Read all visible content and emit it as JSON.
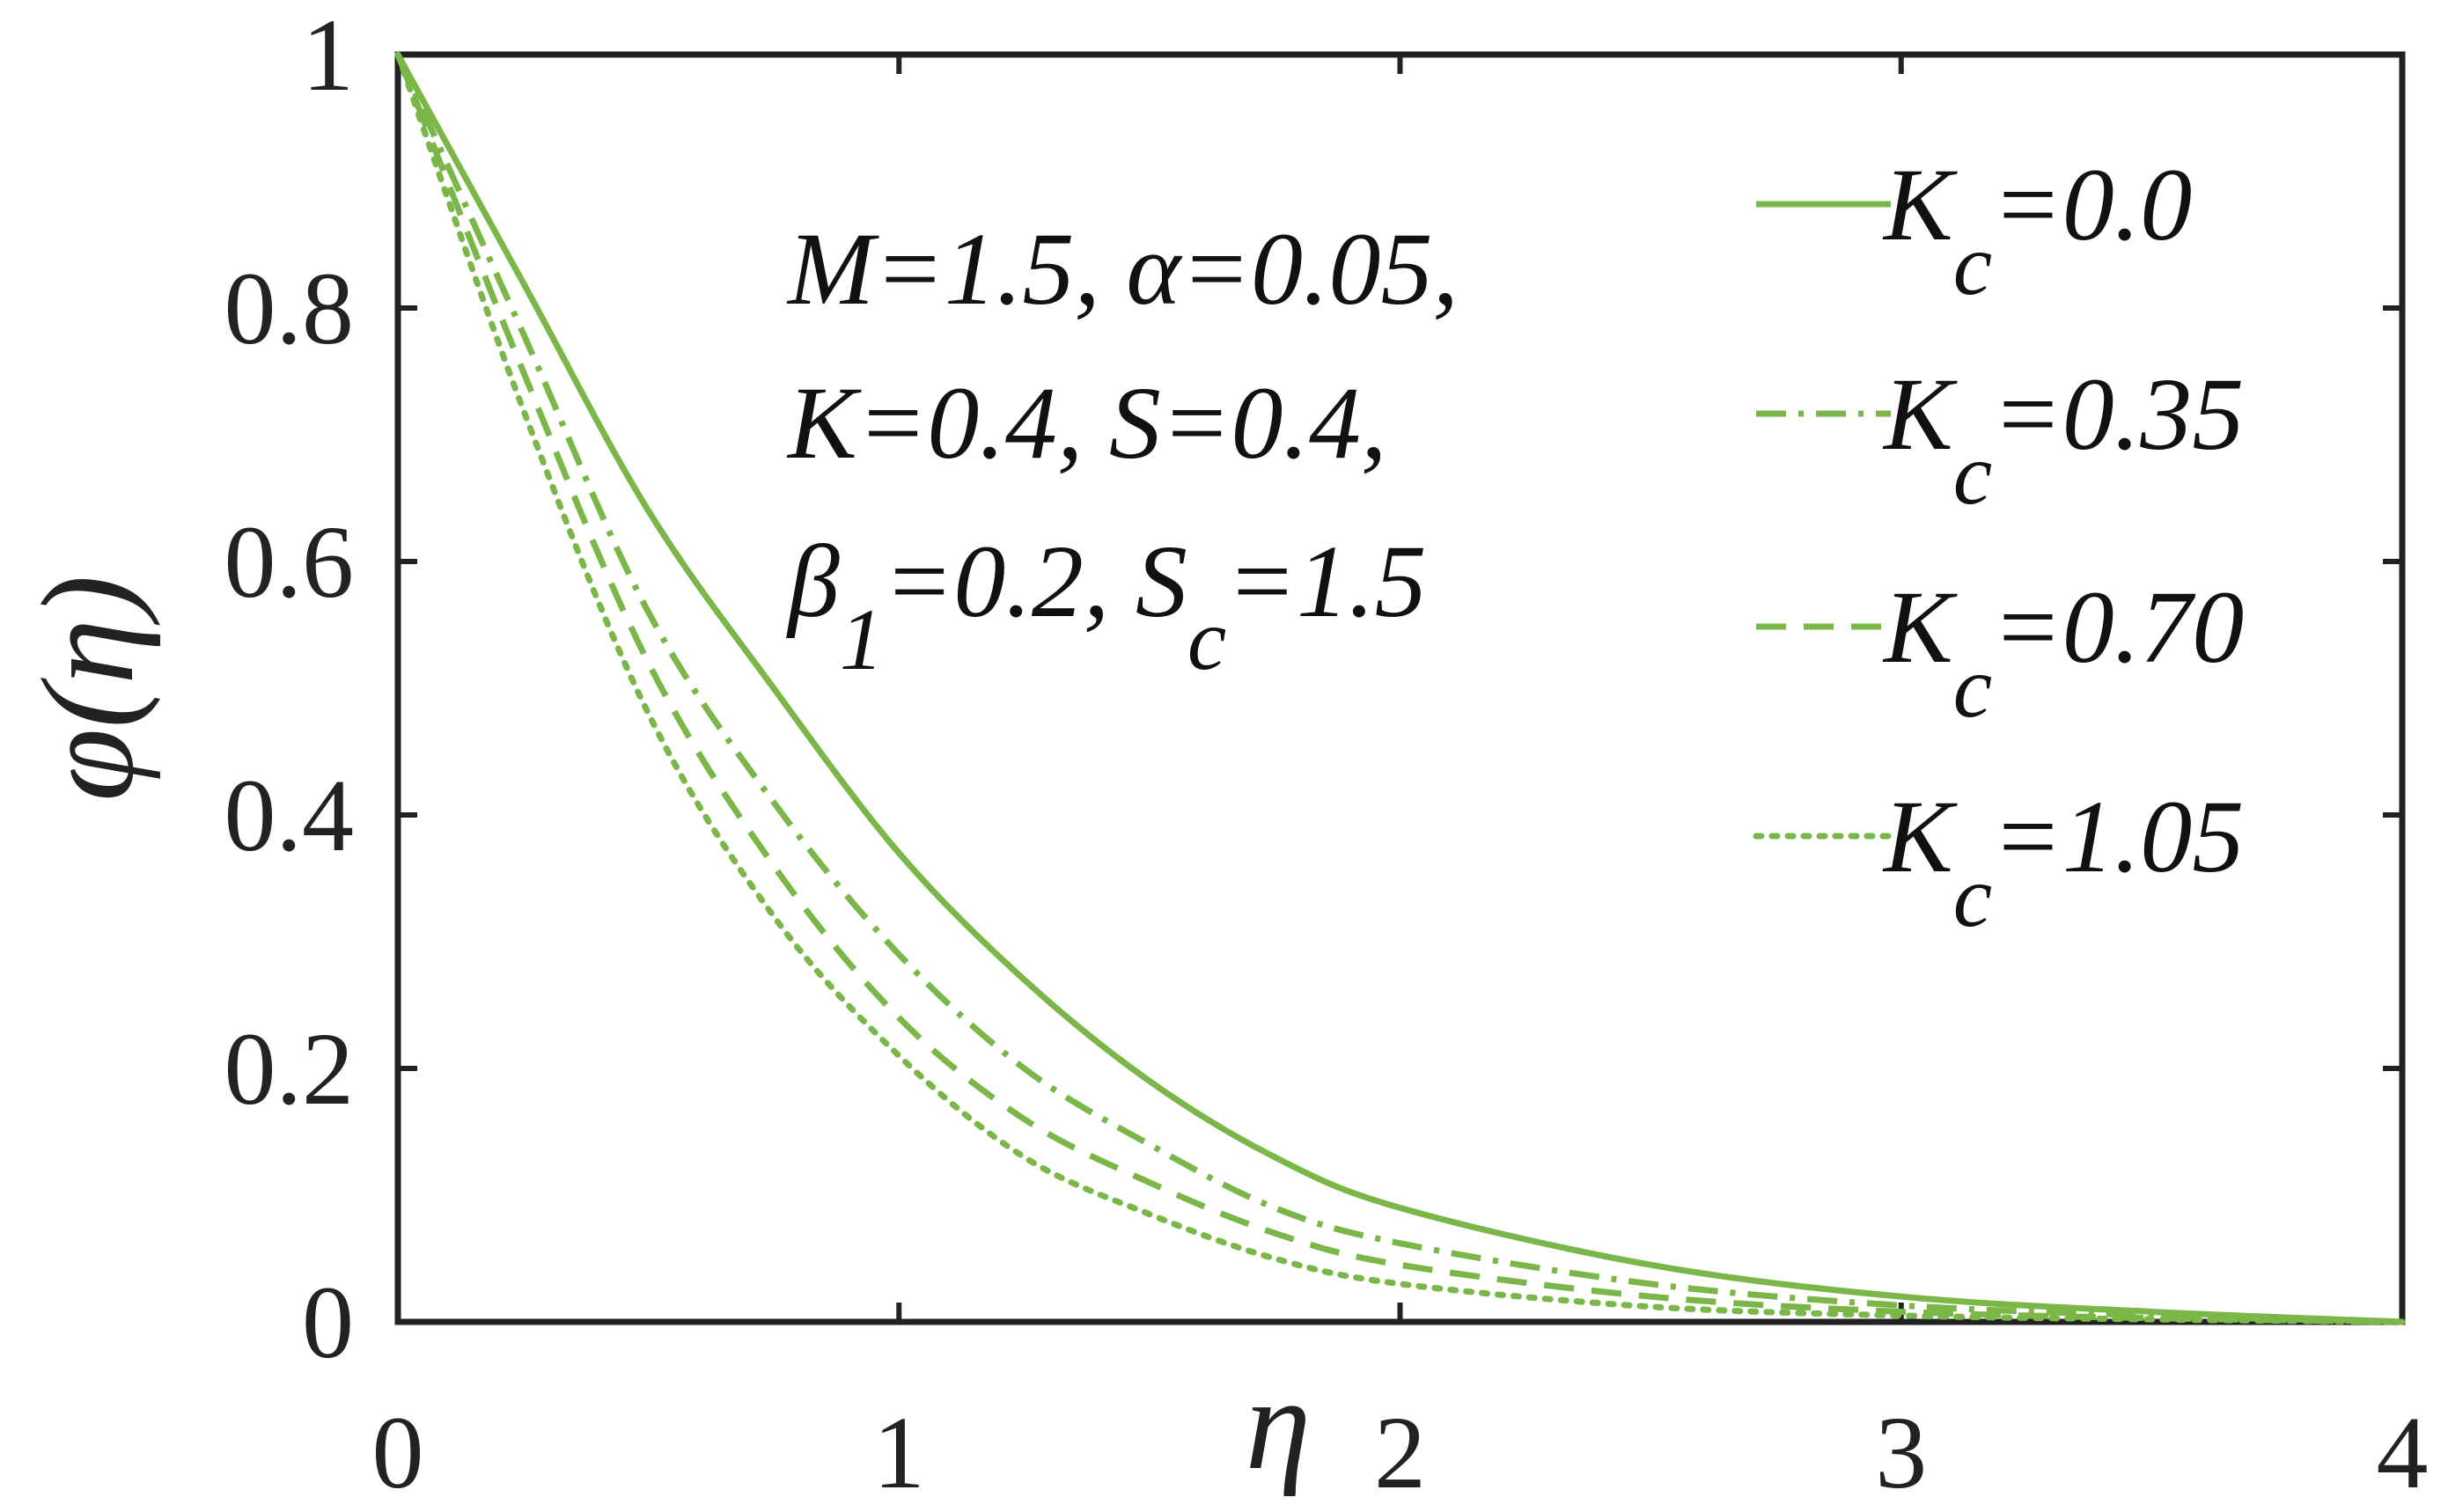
{
  "chart_data": {
    "type": "line",
    "xlabel": "η",
    "ylabel": "φ(η)",
    "xlim": [
      0,
      4
    ],
    "ylim": [
      0,
      1
    ],
    "xticks": [
      "0",
      "1",
      "2",
      "3",
      "4"
    ],
    "yticks": [
      "0",
      "0.2",
      "0.4",
      "0.6",
      "0.8",
      "1"
    ],
    "grid": false,
    "legend_position": "top-right",
    "color": "#7ab648",
    "annotation": {
      "line1": "M=1.5, α=0.05,",
      "line2": "K=0.4, S=0.4,",
      "line3_a": "β",
      "line3_a_sub": "1",
      "line3_b": "=0.2, S",
      "line3_b_sub": "c",
      "line3_c": "=1.5"
    },
    "series": [
      {
        "name": "K_c=0.0",
        "legend_main": "K",
        "legend_sub": "c",
        "legend_value": "=0.0",
        "dash": "solid",
        "x": [
          0,
          0.25,
          0.5,
          0.75,
          1.0,
          1.25,
          1.5,
          1.75,
          2.0,
          2.5,
          3.0,
          3.5,
          4.0
        ],
        "y": [
          1.0,
          0.82,
          0.64,
          0.5,
          0.37,
          0.27,
          0.19,
          0.13,
          0.09,
          0.045,
          0.02,
          0.008,
          0.0
        ]
      },
      {
        "name": "K_c=0.35",
        "legend_main": "K",
        "legend_sub": "c",
        "legend_value": "=0.35",
        "dash": "dashdot",
        "x": [
          0,
          0.25,
          0.5,
          0.75,
          1.0,
          1.25,
          1.5,
          1.75,
          2.0,
          2.5,
          3.0,
          3.5,
          4.0
        ],
        "y": [
          1.0,
          0.78,
          0.56,
          0.41,
          0.29,
          0.2,
          0.14,
          0.09,
          0.062,
          0.03,
          0.013,
          0.005,
          0.0
        ]
      },
      {
        "name": "K_c=0.70",
        "legend_main": "K",
        "legend_sub": "c",
        "legend_value": "=0.70",
        "dash": "dashed",
        "x": [
          0,
          0.25,
          0.5,
          0.75,
          1.0,
          1.25,
          1.5,
          1.75,
          2.0,
          2.5,
          3.0,
          3.5,
          4.0
        ],
        "y": [
          1.0,
          0.75,
          0.52,
          0.36,
          0.24,
          0.16,
          0.11,
          0.07,
          0.045,
          0.02,
          0.008,
          0.003,
          0.0
        ]
      },
      {
        "name": "K_c=1.05",
        "legend_main": "K",
        "legend_sub": "c",
        "legend_value": "=1.05",
        "dash": "dotted",
        "x": [
          0,
          0.25,
          0.5,
          0.75,
          1.0,
          1.25,
          1.5,
          1.75,
          2.0,
          2.5,
          3.0,
          3.5,
          4.0
        ],
        "y": [
          1.0,
          0.72,
          0.48,
          0.32,
          0.21,
          0.13,
          0.085,
          0.05,
          0.03,
          0.012,
          0.005,
          0.002,
          0.0
        ]
      }
    ]
  }
}
